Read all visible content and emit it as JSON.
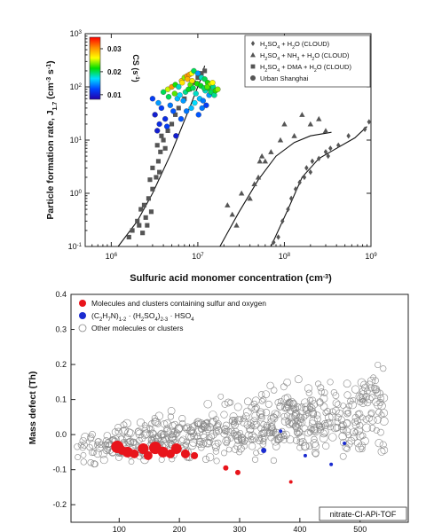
{
  "chart_data": [
    {
      "type": "scatter",
      "xscale": "log",
      "yscale": "log",
      "xlim": [
        500000,
        1000000000
      ],
      "ylim": [
        0.1,
        1000
      ],
      "xlabel": "Sulfuric acid monomer concentration (cm",
      "xlabel_sup": "-3",
      "xlabel_end": ")",
      "ylabel": "Particle formation rate, J",
      "ylabel_sub": "1.7",
      "ylabel_unit": " (cm",
      "ylabel_unit_sup": "-3",
      "ylabel_s": " s",
      "ylabel_s_sup": "-1",
      "ylabel_end": ")",
      "x_ticks": [
        {
          "v": 1000000,
          "base": "10",
          "exp": "6"
        },
        {
          "v": 10000000,
          "base": "10",
          "exp": "7"
        },
        {
          "v": 100000000,
          "base": "10",
          "exp": "8"
        },
        {
          "v": 1000000000,
          "base": "10",
          "exp": "9"
        }
      ],
      "y_ticks": [
        {
          "v": 0.1,
          "base": "10",
          "exp": "-1"
        },
        {
          "v": 1,
          "base": "10",
          "exp": "0"
        },
        {
          "v": 10,
          "base": "10",
          "exp": "1"
        },
        {
          "v": 100,
          "base": "10",
          "exp": "2"
        },
        {
          "v": 1000,
          "base": "10",
          "exp": "3"
        }
      ],
      "colorbar": {
        "label": "CS (s",
        "label_sup": "-1",
        "label_end": ")",
        "ticks": [
          "0.03",
          "0.02",
          "0.01"
        ],
        "tick_values": [
          0.03,
          0.02,
          0.01
        ],
        "range": [
          0.008,
          0.035
        ],
        "colors": [
          "#ff0000",
          "#ff8c00",
          "#ffff00",
          "#00dd00",
          "#00ddff",
          "#0044ff",
          "#2200aa"
        ]
      },
      "legend": {
        "placement": "top-right",
        "entries": [
          {
            "marker": "diamond",
            "parts": [
              "H",
              "2",
              "SO",
              "4",
              " + H",
              "2",
              "O (CLOUD)"
            ]
          },
          {
            "marker": "triangle",
            "parts": [
              "H",
              "2",
              "SO",
              "4",
              " + NH",
              "3",
              " + H",
              "2",
              "O (CLOUD)"
            ]
          },
          {
            "marker": "square",
            "parts": [
              "H",
              "2",
              "SO",
              "4",
              " + DMA + H",
              "2",
              "O (CLOUD)"
            ]
          },
          {
            "marker": "circle",
            "parts": [
              "Urban Shanghai"
            ]
          }
        ]
      },
      "series": [
        {
          "name": "H2SO4 + H2O (CLOUD)",
          "marker": "diamond",
          "color": "#555555",
          "points": [
            [
              75000000,
              0.12
            ],
            [
              85000000,
              0.15
            ],
            [
              95000000,
              0.3
            ],
            [
              110000000,
              0.5
            ],
            [
              120000000,
              0.8
            ],
            [
              135000000,
              1.2
            ],
            [
              150000000,
              1.6
            ],
            [
              170000000,
              2.0
            ],
            [
              180000000,
              3.0
            ],
            [
              200000000,
              2.5
            ],
            [
              210000000,
              4.0
            ],
            [
              250000000,
              4.5
            ],
            [
              300000000,
              6.0
            ],
            [
              320000000,
              5.0
            ],
            [
              340000000,
              7.0
            ],
            [
              420000000,
              8.0
            ],
            [
              550000000,
              12.0
            ],
            [
              850000000,
              16.0
            ],
            [
              950000000,
              22.0
            ]
          ]
        },
        {
          "name": "H2SO4 + NH3 + H2O (CLOUD)",
          "marker": "triangle",
          "color": "#555555",
          "points": [
            [
              22000000,
              0.6
            ],
            [
              25000000,
              0.4
            ],
            [
              28000000,
              0.25
            ],
            [
              32000000,
              1.0
            ],
            [
              40000000,
              0.8
            ],
            [
              45000000,
              1.5
            ],
            [
              50000000,
              2.0
            ],
            [
              52000000,
              4.0
            ],
            [
              55000000,
              5.0
            ],
            [
              60000000,
              4.0
            ],
            [
              70000000,
              6.0
            ],
            [
              90000000,
              10.0
            ],
            [
              100000000,
              20.0
            ],
            [
              130000000,
              12.0
            ],
            [
              160000000,
              30.0
            ],
            [
              200000000,
              20.0
            ],
            [
              250000000,
              25.0
            ],
            [
              300000000,
              15.0
            ]
          ]
        },
        {
          "name": "H2SO4 + DMA + H2O (CLOUD)",
          "marker": "square",
          "color": "#555555",
          "points": [
            [
              1600000,
              0.15
            ],
            [
              1750000,
              0.2
            ],
            [
              2000000,
              0.3
            ],
            [
              2100000,
              0.25
            ],
            [
              2300000,
              0.18
            ],
            [
              2500000,
              0.35
            ],
            [
              2200000,
              0.5
            ],
            [
              2400000,
              0.6
            ],
            [
              2700000,
              0.8
            ],
            [
              3000000,
              1.2
            ],
            [
              2800000,
              1.8
            ],
            [
              3300000,
              2.0
            ],
            [
              3000000,
              3.0
            ],
            [
              3500000,
              4.0
            ],
            [
              3700000,
              6.0
            ],
            [
              3400000,
              8.0
            ],
            [
              4000000,
              10.0
            ],
            [
              3800000,
              12.0
            ],
            [
              4500000,
              15.0
            ],
            [
              5000000,
              20.0
            ],
            [
              5500000,
              30.0
            ],
            [
              6000000,
              40.0
            ],
            [
              7000000,
              60.0
            ],
            [
              8000000,
              90.0
            ],
            [
              9000000,
              120.0
            ],
            [
              10000000,
              150.0
            ],
            [
              11000000,
              180.0
            ],
            [
              12000000,
              200.0
            ],
            [
              2600000,
              0.25
            ],
            [
              2900000,
              0.45
            ],
            [
              3600000,
              2.5
            ],
            [
              4200000,
              7.0
            ]
          ]
        }
      ],
      "shanghai": [
        [
          3000000,
          60,
          0.012
        ],
        [
          3500000,
          50,
          0.015
        ],
        [
          4000000,
          80,
          0.02
        ],
        [
          4500000,
          90,
          0.025
        ],
        [
          5000000,
          100,
          0.03
        ],
        [
          5500000,
          110,
          0.022
        ],
        [
          6000000,
          100,
          0.018
        ],
        [
          6500000,
          130,
          0.028
        ],
        [
          7000000,
          150,
          0.024
        ],
        [
          7500000,
          160,
          0.03
        ],
        [
          8000000,
          170,
          0.03
        ],
        [
          8500000,
          180,
          0.026
        ],
        [
          9000000,
          200,
          0.02
        ],
        [
          10000000,
          180,
          0.015
        ],
        [
          11000000,
          150,
          0.018
        ],
        [
          12000000,
          140,
          0.02
        ],
        [
          13000000,
          120,
          0.022
        ],
        [
          14000000,
          110,
          0.025
        ],
        [
          15000000,
          100,
          0.019
        ],
        [
          3200000,
          30,
          0.01
        ],
        [
          3800000,
          40,
          0.012
        ],
        [
          4200000,
          25,
          0.011
        ],
        [
          4800000,
          45,
          0.014
        ],
        [
          5200000,
          35,
          0.013
        ],
        [
          5800000,
          60,
          0.016
        ],
        [
          6200000,
          70,
          0.017
        ],
        [
          6800000,
          55,
          0.015
        ],
        [
          7200000,
          80,
          0.019
        ],
        [
          7800000,
          90,
          0.021
        ],
        [
          8200000,
          110,
          0.023
        ],
        [
          8800000,
          95,
          0.02
        ],
        [
          9500000,
          75,
          0.018
        ],
        [
          10500000,
          60,
          0.016
        ],
        [
          11500000,
          55,
          0.014
        ],
        [
          12500000,
          45,
          0.012
        ],
        [
          13500000,
          70,
          0.015
        ],
        [
          3400000,
          15,
          0.01
        ],
        [
          3600000,
          20,
          0.011
        ],
        [
          4400000,
          18,
          0.012
        ],
        [
          5600000,
          12,
          0.01
        ],
        [
          6400000,
          25,
          0.013
        ],
        [
          7400000,
          35,
          0.014
        ],
        [
          8400000,
          40,
          0.016
        ],
        [
          9200000,
          50,
          0.017
        ],
        [
          10200000,
          30,
          0.013
        ],
        [
          11200000,
          40,
          0.014
        ],
        [
          12200000,
          85,
          0.018
        ],
        [
          13200000,
          95,
          0.021
        ],
        [
          14200000,
          80,
          0.02
        ],
        [
          15500000,
          70,
          0.019
        ],
        [
          16000000,
          85,
          0.022
        ],
        [
          17000000,
          90,
          0.024
        ],
        [
          4600000,
          65,
          0.02
        ],
        [
          5400000,
          75,
          0.023
        ],
        [
          6600000,
          120,
          0.027
        ],
        [
          7600000,
          140,
          0.029
        ],
        [
          8600000,
          130,
          0.027
        ],
        [
          9800000,
          115,
          0.022
        ],
        [
          10800000,
          105,
          0.021
        ],
        [
          11800000,
          95,
          0.02
        ],
        [
          12800000,
          100,
          0.023
        ],
        [
          14800000,
          120,
          0.026
        ]
      ],
      "fit_lines": [
        {
          "series": "H2SO4 + DMA + H2O (CLOUD)",
          "points": [
            [
              1200000,
              0.1
            ],
            [
              2000000,
              0.3
            ],
            [
              3000000,
              1.0
            ],
            [
              5000000,
              6.0
            ],
            [
              8000000,
              40.0
            ],
            [
              11000000,
              150.0
            ],
            [
              12000000,
              250.0
            ]
          ]
        },
        {
          "series": "H2SO4 + NH3 + H2O (CLOUD)",
          "points": [
            [
              18000000,
              0.1
            ],
            [
              30000000,
              0.45
            ],
            [
              50000000,
              1.8
            ],
            [
              80000000,
              5.0
            ],
            [
              130000000,
              9.0
            ],
            [
              200000000,
              12.0
            ],
            [
              350000000,
              14.0
            ]
          ]
        },
        {
          "series": "H2SO4 + H2O (CLOUD)",
          "points": [
            [
              70000000,
              0.1
            ],
            [
              110000000,
              0.5
            ],
            [
              160000000,
              2.0
            ],
            [
              250000000,
              4.5
            ],
            [
              400000000,
              7.0
            ],
            [
              650000000,
              11.0
            ],
            [
              900000000,
              18.0
            ]
          ]
        }
      ]
    },
    {
      "type": "scatter",
      "xlim": [
        20,
        580
      ],
      "ylim": [
        -0.25,
        0.4
      ],
      "xlabel": "",
      "ylabel": "Mass defect (Th)",
      "x_ticks": [
        "100",
        "200",
        "300",
        "400",
        "500"
      ],
      "x_tick_values": [
        100,
        200,
        300,
        400,
        500
      ],
      "y_ticks": [
        "0.4",
        "0.3",
        "0.2",
        "0.1",
        "0.0",
        "-0.1",
        "-0.2"
      ],
      "y_tick_values": [
        0.4,
        0.3,
        0.2,
        0.1,
        0.0,
        -0.1,
        -0.2
      ],
      "annotation": "nitrate-CI-APi-TOF",
      "legend": {
        "placement": "top-left",
        "entries": [
          {
            "marker": "filled-circle",
            "color": "#e8141b",
            "parts": [
              "Molecules and clusters containing sulfur and oxygen"
            ]
          },
          {
            "marker": "filled-circle",
            "color": "#1a2bd0",
            "parts": [
              "(C",
              "2",
              "H",
              "7",
              "N)",
              "1-2",
              " · (H",
              "2",
              "SO",
              "4",
              ")",
              "2-3",
              " · HSO",
              "4"
            ]
          },
          {
            "marker": "open-circle",
            "color": "#888888",
            "parts": [
              "Other molecules or clusters"
            ]
          }
        ]
      },
      "series": [
        {
          "name": "Molecules and clusters containing sulfur and oxygen",
          "color": "#e8141b",
          "points": [
            [
              97,
              -0.035,
              7
            ],
            [
              105,
              -0.045,
              5
            ],
            [
              114,
              -0.05,
              6
            ],
            [
              125,
              -0.055,
              5
            ],
            [
              140,
              -0.04,
              6
            ],
            [
              148,
              -0.06,
              5
            ],
            [
              160,
              -0.038,
              7
            ],
            [
              173,
              -0.05,
              6
            ],
            [
              185,
              -0.055,
              5
            ],
            [
              195,
              -0.04,
              6
            ],
            [
              210,
              -0.055,
              5
            ],
            [
              225,
              -0.06,
              4
            ],
            [
              277,
              -0.095,
              3
            ],
            [
              297,
              -0.108,
              3
            ],
            [
              385,
              -0.135,
              2
            ]
          ]
        },
        {
          "name": "(C2H7N)1-2 · (H2SO4)2-3 · HSO4",
          "color": "#1a2bd0",
          "points": [
            [
              340,
              -0.045,
              3
            ],
            [
              368,
              0.01,
              2
            ],
            [
              409,
              -0.06,
              2
            ],
            [
              452,
              -0.085,
              2
            ],
            [
              474,
              -0.025,
              2
            ]
          ]
        },
        {
          "name": "Other molecules or clusters",
          "color": "#888888",
          "count": 620
        }
      ]
    }
  ]
}
